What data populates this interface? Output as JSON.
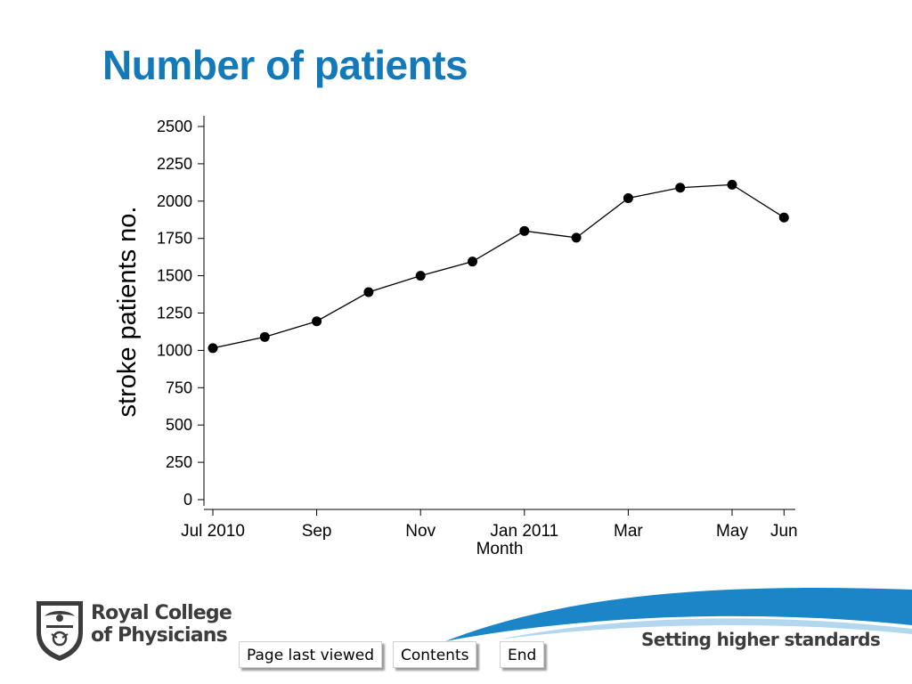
{
  "slide": {
    "title": "Number of patients"
  },
  "chart_data": {
    "type": "line",
    "xlabel": "Month",
    "ylabel": "stroke patients no.",
    "ylim": [
      0,
      2500
    ],
    "yticks": [
      0,
      250,
      500,
      750,
      1000,
      1250,
      1500,
      1750,
      2000,
      2250,
      2500
    ],
    "x": [
      "2010-07",
      "2010-08",
      "2010-09",
      "2010-10",
      "2010-11",
      "2010-12",
      "2011-01",
      "2011-02",
      "2011-03",
      "2011-04",
      "2011-05",
      "2011-06"
    ],
    "xtick_labels": [
      "Jul 2010",
      "",
      "Sep",
      "",
      "Nov",
      "",
      "Jan 2011",
      "",
      "Mar",
      "",
      "May",
      "Jun"
    ],
    "series": [
      {
        "values": [
          1015,
          1090,
          1195,
          1390,
          1500,
          1595,
          1800,
          1755,
          2020,
          2090,
          2110,
          1890
        ]
      }
    ],
    "grid": false,
    "marker_color": "#000000",
    "line_color": "#000000"
  },
  "brand": {
    "logo_line1": "Royal College",
    "logo_line2": "of Physicians",
    "tagline": "Setting higher standards",
    "accent": "#1479b8"
  },
  "nav": {
    "last_viewed": "Page last viewed",
    "contents": "Contents",
    "end": "End"
  }
}
